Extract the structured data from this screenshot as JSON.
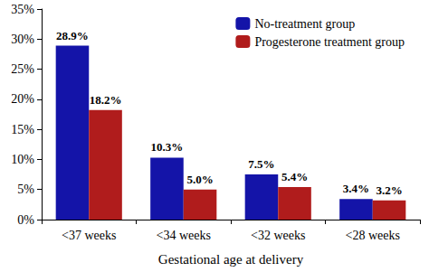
{
  "chart_data": {
    "type": "bar",
    "x_label": "Gestational age at delivery",
    "categories": [
      "<37 weeks",
      "<34 weeks",
      "<32 weeks",
      "<28 weeks"
    ],
    "series": [
      {
        "name": "No-treatment group",
        "color": "#1414a8",
        "values": [
          28.9,
          10.3,
          7.5,
          3.4
        ],
        "value_labels": [
          "28.9%",
          "10.3%",
          "7.5%",
          "3.4%"
        ]
      },
      {
        "name": "Progesterone treatment group",
        "color": "#b01c1c",
        "values": [
          18.2,
          5.0,
          5.4,
          3.2
        ],
        "value_labels": [
          "18.2%",
          "5.0%",
          "5.4%",
          "3.2%"
        ]
      }
    ],
    "ylim": [
      0,
      35
    ],
    "yticks": [
      {
        "value": 0,
        "label": "0%"
      },
      {
        "value": 5,
        "label": "5%"
      },
      {
        "value": 10,
        "label": "10%"
      },
      {
        "value": 15,
        "label": "15%"
      },
      {
        "value": 20,
        "label": "20%"
      },
      {
        "value": 25,
        "label": "25%"
      },
      {
        "value": 30,
        "label": "30%"
      },
      {
        "value": 35,
        "label": "35%"
      }
    ],
    "grid": false,
    "legend": "upper right",
    "data_labels": true
  }
}
